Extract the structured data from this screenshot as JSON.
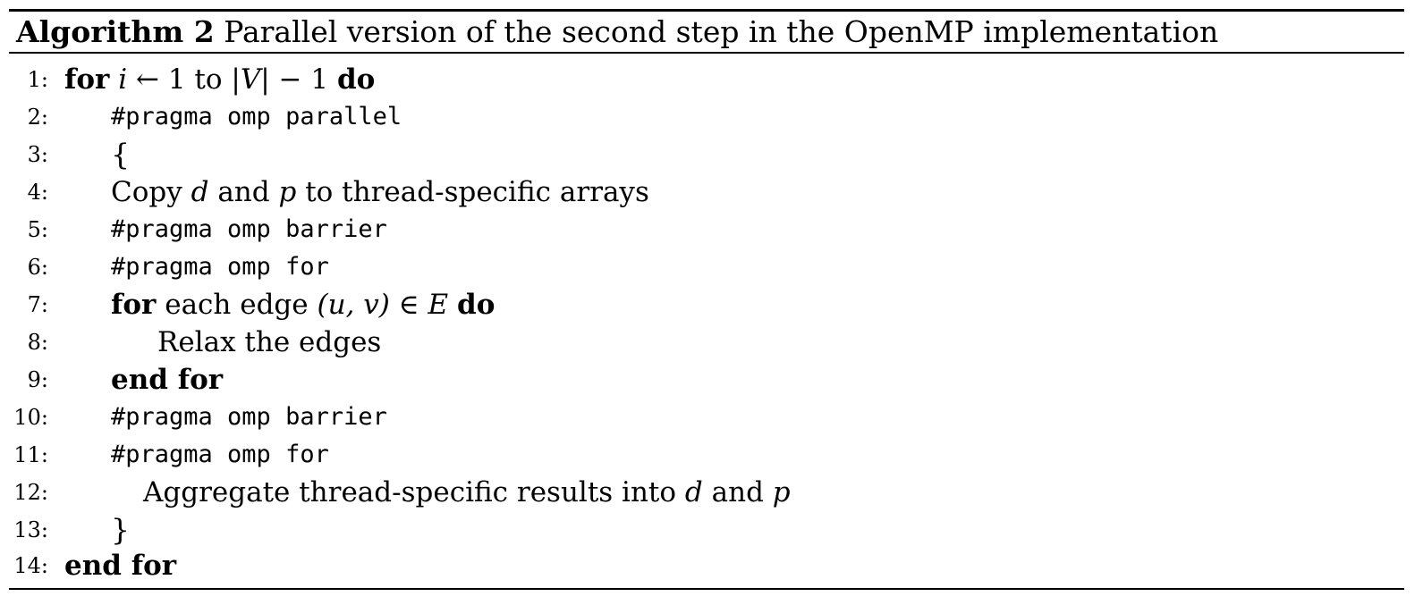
{
  "caption": {
    "label": "Algorithm 2",
    "text": "Parallel version of the second step in the OpenMP implementation"
  },
  "lines": [
    {
      "no": "1:",
      "kw1": "for",
      "math1": "i",
      "arrow": "←",
      "t1": "1 to",
      "math2": "|V|",
      "t2": "− 1",
      "kw2": "do"
    },
    {
      "no": "2:",
      "code": "#pragma omp parallel"
    },
    {
      "no": "3:",
      "brace": "{"
    },
    {
      "no": "4:",
      "t1": "Copy",
      "math1": "d",
      "t2": "and",
      "math2": "p",
      "t3": "to thread-specific arrays"
    },
    {
      "no": "5:",
      "code": "#pragma omp barrier"
    },
    {
      "no": "6:",
      "code": "#pragma omp for"
    },
    {
      "no": "7:",
      "kw1": "for",
      "t1": "each edge",
      "math1": "(u, v)",
      "sym": "∈",
      "math2": "E",
      "kw2": "do"
    },
    {
      "no": "8:",
      "text": "Relax the edges"
    },
    {
      "no": "9:",
      "kw": "end for"
    },
    {
      "no": "10:",
      "code": "#pragma omp barrier"
    },
    {
      "no": "11:",
      "code": "#pragma omp for"
    },
    {
      "no": "12:",
      "t1": "Aggregate thread-specific results into",
      "math1": "d",
      "t2": "and",
      "math2": "p"
    },
    {
      "no": "13:",
      "brace": "}"
    },
    {
      "no": "14:",
      "kw": "end for"
    }
  ]
}
